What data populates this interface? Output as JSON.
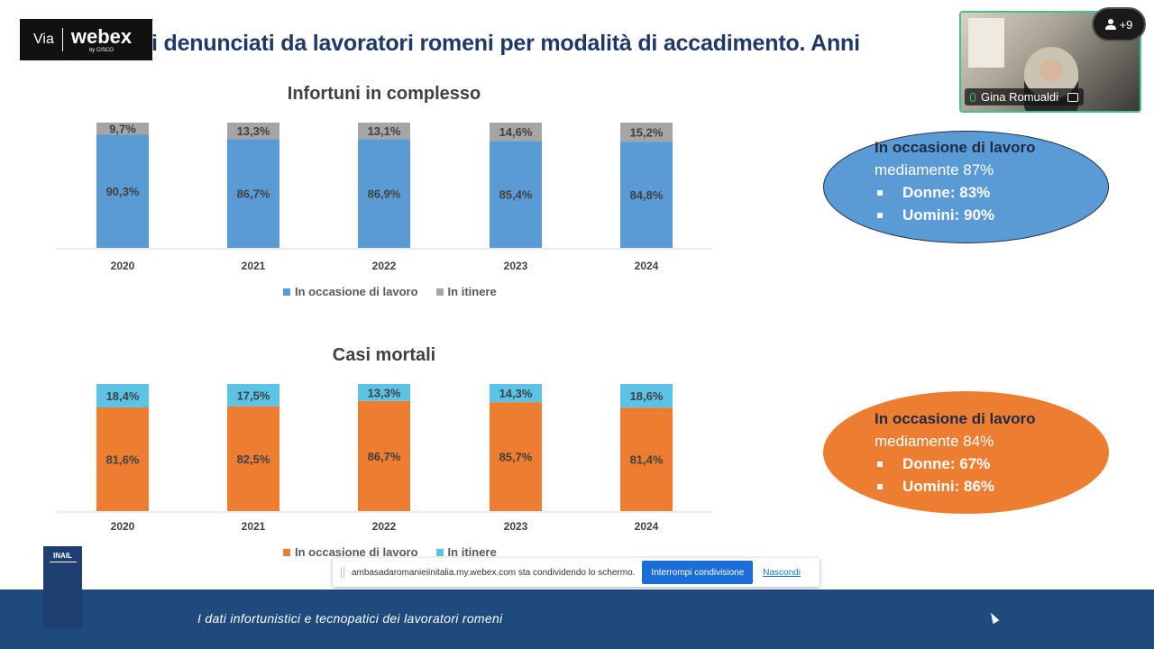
{
  "slide": {
    "title": "i denunciati da lavoratori romeni per modalità di accadimento. Anni",
    "footer": "I dati infortunistici e tecnopatici dei lavoratori romeni",
    "logo_text": "INAIL"
  },
  "webex": {
    "via": "Via",
    "brand": "webex",
    "brand_sub": "by CISCO",
    "participant_name": "Gina Romualdi",
    "participants_more": "+9",
    "share_message": "ambasadaromanieiinitalia.my.webex.com sta condividendo lo schermo.",
    "stop_share_label": "Interrompi condivisione",
    "hide_label": "Nascondi"
  },
  "colors": {
    "work_blue": "#5b9bd5",
    "itinere_gray": "#a5a5a5",
    "work_orange": "#ed7d31",
    "itinere_cyan": "#5bc3e6",
    "title_navy": "#1f3864",
    "footer_navy": "#1f4a7d"
  },
  "chart_data": [
    {
      "type": "bar",
      "stacked": true,
      "percent": true,
      "title": "Infortuni in complesso",
      "categories": [
        "2020",
        "2021",
        "2022",
        "2023",
        "2024"
      ],
      "series": [
        {
          "name": "In occasione di lavoro",
          "color": "#5b9bd5",
          "values": [
            90.3,
            86.7,
            86.9,
            85.4,
            84.8
          ],
          "labels": [
            "90,3%",
            "86,7%",
            "86,9%",
            "85,4%",
            "84,8%"
          ]
        },
        {
          "name": "In itinere",
          "color": "#a5a5a5",
          "values": [
            9.7,
            13.3,
            13.1,
            14.6,
            15.2
          ],
          "labels": [
            "9,7%",
            "13,3%",
            "13,1%",
            "14,6%",
            "15,2%"
          ]
        }
      ],
      "ylim": [
        0,
        100
      ],
      "legend": "bottom"
    },
    {
      "type": "bar",
      "stacked": true,
      "percent": true,
      "title": "Casi mortali",
      "categories": [
        "2020",
        "2021",
        "2022",
        "2023",
        "2024"
      ],
      "series": [
        {
          "name": "In occasione di lavoro",
          "color": "#ed7d31",
          "values": [
            81.6,
            82.5,
            86.7,
            85.7,
            81.4
          ],
          "labels": [
            "81,6%",
            "82,5%",
            "86,7%",
            "85,7%",
            "81,4%"
          ]
        },
        {
          "name": "In itinere",
          "color": "#5bc3e6",
          "values": [
            18.4,
            17.5,
            13.3,
            14.3,
            18.6
          ],
          "labels": [
            "18,4%",
            "17,5%",
            "13,3%",
            "14,3%",
            "18,6%"
          ]
        }
      ],
      "ylim": [
        0,
        100
      ],
      "legend": "bottom"
    }
  ],
  "callouts": {
    "infortuni": {
      "heading": "In occasione di lavoro",
      "average": "mediamente  87%",
      "women": "Donne: 83%",
      "men": "Uomini: 90%",
      "color": "#5b9bd5"
    },
    "mortali": {
      "heading": "In occasione di lavoro",
      "average": "mediamente  84%",
      "women": "Donne: 67%",
      "men": "Uomini: 86%",
      "color": "#ed7d31"
    }
  }
}
